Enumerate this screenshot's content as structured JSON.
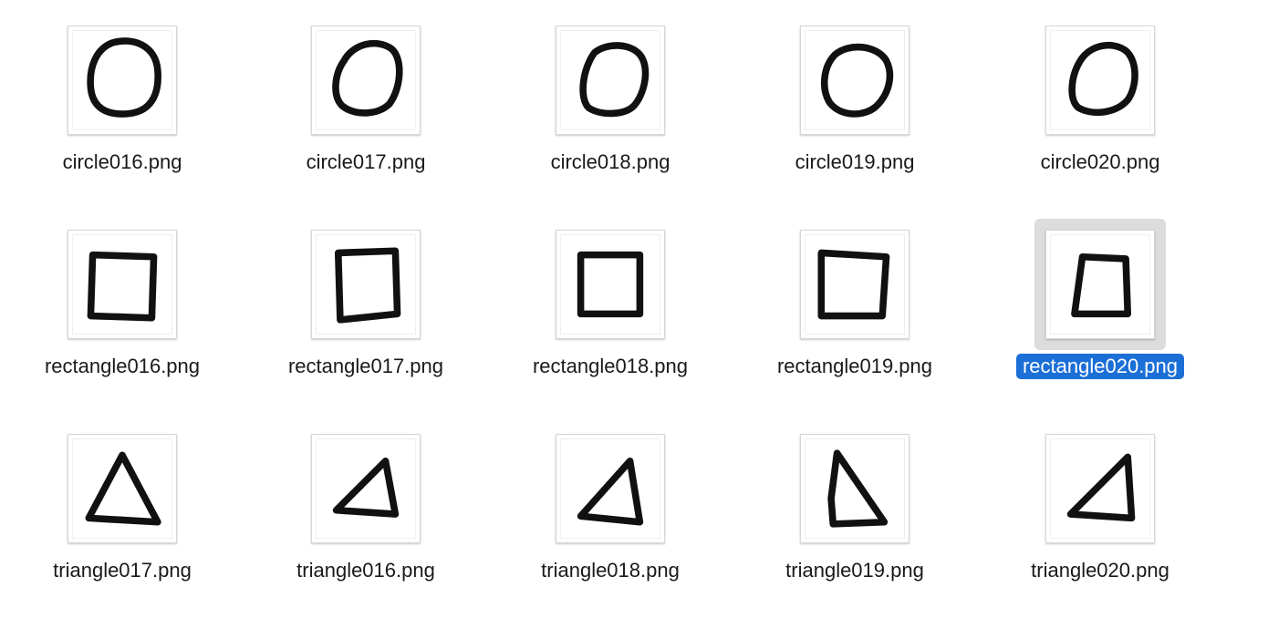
{
  "files": [
    {
      "name": "circle016.png",
      "shape": "circle",
      "icon": "circle-drawing-thumbnail",
      "selected": false
    },
    {
      "name": "circle017.png",
      "shape": "circle",
      "icon": "circle-drawing-thumbnail",
      "selected": false
    },
    {
      "name": "circle018.png",
      "shape": "circle",
      "icon": "circle-drawing-thumbnail",
      "selected": false
    },
    {
      "name": "circle019.png",
      "shape": "circle",
      "icon": "circle-drawing-thumbnail",
      "selected": false
    },
    {
      "name": "circle020.png",
      "shape": "circle",
      "icon": "circle-drawing-thumbnail",
      "selected": false
    },
    {
      "name": "rectangle016.png",
      "shape": "rectangle",
      "icon": "rectangle-drawing-thumbnail",
      "selected": false
    },
    {
      "name": "rectangle017.png",
      "shape": "rectangle",
      "icon": "rectangle-drawing-thumbnail",
      "selected": false
    },
    {
      "name": "rectangle018.png",
      "shape": "rectangle",
      "icon": "rectangle-drawing-thumbnail",
      "selected": false
    },
    {
      "name": "rectangle019.png",
      "shape": "rectangle",
      "icon": "rectangle-drawing-thumbnail",
      "selected": false
    },
    {
      "name": "rectangle020.png",
      "shape": "rectangle",
      "icon": "rectangle-drawing-thumbnail",
      "selected": true
    },
    {
      "name": "triangle017.png",
      "shape": "triangle",
      "icon": "triangle-drawing-thumbnail",
      "selected": false
    },
    {
      "name": "triangle016.png",
      "shape": "triangle",
      "icon": "triangle-drawing-thumbnail",
      "selected": false
    },
    {
      "name": "triangle018.png",
      "shape": "triangle",
      "icon": "triangle-drawing-thumbnail",
      "selected": false
    },
    {
      "name": "triangle019.png",
      "shape": "triangle",
      "icon": "triangle-drawing-thumbnail",
      "selected": false
    },
    {
      "name": "triangle020.png",
      "shape": "triangle",
      "icon": "triangle-drawing-thumbnail",
      "selected": false
    }
  ],
  "colors": {
    "selection_label_bg": "#1b6fd6",
    "selection_thumb_bg": "#dcdcdc",
    "label_text": "#1a1a1a"
  }
}
